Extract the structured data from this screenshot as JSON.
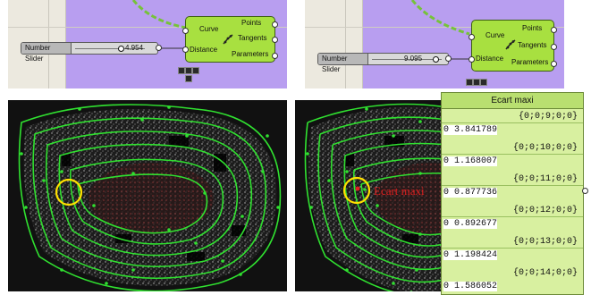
{
  "left_canvas": {
    "slider": {
      "label": "Number Slider",
      "value": "4.954",
      "knob_fraction": 0.52
    },
    "component": {
      "inputs": [
        "Curve",
        "Distance"
      ],
      "outputs": [
        "Points",
        "Tangents",
        "Parameters"
      ]
    }
  },
  "right_canvas": {
    "slider": {
      "label": "Number Slider",
      "value": "9.095",
      "knob_fraction": 0.82
    },
    "component": {
      "inputs": [
        "Curve",
        "Distance"
      ],
      "outputs": [
        "Points",
        "Tangents",
        "Parameters"
      ]
    }
  },
  "annotation": {
    "label": "Ecart maxi"
  },
  "panel": {
    "title": "Ecart maxi",
    "rows": [
      {
        "path": "{0;0;9;0;0}",
        "index": "0",
        "value": "3.841789"
      },
      {
        "path": "{0;0;10;0;0}",
        "index": "0",
        "value": "1.168007"
      },
      {
        "path": "{0;0;11;0;0}",
        "index": "0",
        "value": "0.877736"
      },
      {
        "path": "{0;0;12;0;0}",
        "index": "0",
        "value": "0.892677"
      },
      {
        "path": "{0;0;13;0;0}",
        "index": "0",
        "value": "1.198424"
      },
      {
        "path": "{0;0;14;0;0}",
        "index": "0",
        "value": "1.586052"
      }
    ]
  },
  "colors": {
    "curve_green": "#30e030",
    "highlight_circle": "#ffe000",
    "annotation_red": "#e02020",
    "panel_bg": "#d8f0a0"
  }
}
